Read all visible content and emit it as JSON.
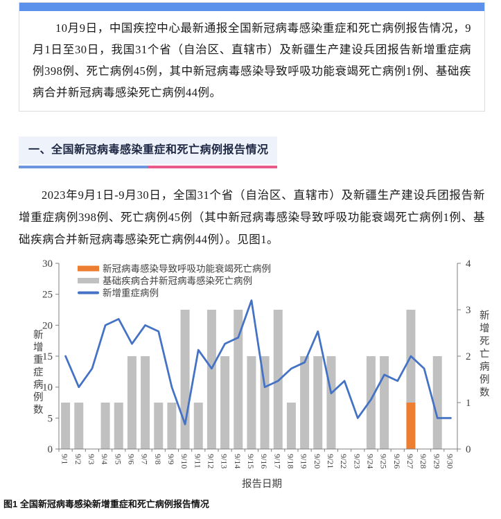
{
  "theme": {
    "top_bar_blue": "#5b91ea",
    "header_bg": "#edf2fb",
    "header_text": "#1d2742",
    "underline_blue": "#6e96e0",
    "underline_pink": "#e85c8d",
    "box_border": "#dcdcdc",
    "body_text": "#1a1a1a"
  },
  "intro_box": {
    "text": "10月9日，中国疾控中心最新通报全国新冠病毒感染重症和死亡病例报告情况，9月1日至30日，我国31个省（自治区、直辖市）及新疆生产建设兵团报告新增重症病例398例、死亡病例45例，其中新冠病毒感染导致呼吸功能衰竭死亡病例1例、基础疾病合并新冠病毒感染死亡病例44例。"
  },
  "section": {
    "title": "一、全国新冠病毒感染重症和死亡病例报告情况"
  },
  "paragraph": {
    "text": "2023年9月1日-9月30日，全国31个省（自治区、直辖市）及新疆生产建设兵团报告新增重症病例398例、死亡病例45例（其中新冠病毒感染导致呼吸功能衰竭死亡病例1例、基础疾病合并新冠病毒感染死亡病例44例）。见图1。"
  },
  "figure": {
    "caption": "图1 全国新冠病毒感染新增重症和死亡病例报告情况"
  },
  "chart_data": {
    "type": "combo-bar-line",
    "categories": [
      "9/1",
      "9/2",
      "9/3",
      "9/4",
      "9/5",
      "9/6",
      "9/7",
      "9/8",
      "9/9",
      "9/10",
      "9/11",
      "9/12",
      "9/13",
      "9/14",
      "9/15",
      "9/16",
      "9/17",
      "9/18",
      "9/19",
      "9/20",
      "9/21",
      "9/22",
      "9/23",
      "9/24",
      "9/25",
      "9/26",
      "9/27",
      "9/28",
      "9/29",
      "9/30"
    ],
    "series": [
      {
        "name": "新冠病毒感染导致呼吸功能衰竭死亡病例",
        "type": "bar",
        "stack": "deaths",
        "axis": "right",
        "color": "#ED7D31",
        "values": [
          0,
          0,
          0,
          0,
          0,
          0,
          0,
          0,
          0,
          0,
          0,
          0,
          0,
          0,
          0,
          0,
          0,
          0,
          0,
          0,
          0,
          0,
          0,
          0,
          0,
          0,
          1,
          0,
          0,
          0
        ]
      },
      {
        "name": "基础疾病合并新冠病毒感染死亡病例",
        "type": "bar",
        "stack": "deaths",
        "axis": "right",
        "color": "#C0C0C0",
        "values": [
          1,
          1,
          0,
          1,
          1,
          2,
          2,
          1,
          1,
          3,
          1,
          3,
          2,
          3,
          2,
          2,
          3,
          1,
          2,
          2,
          2,
          0,
          0,
          2,
          2,
          0,
          2,
          0,
          2,
          0
        ]
      },
      {
        "name": "新增重症病例",
        "type": "line",
        "axis": "left",
        "color": "#4472C4",
        "values": [
          15,
          10,
          13,
          20,
          21,
          17,
          20,
          19,
          10,
          4,
          16,
          13,
          17,
          18,
          24,
          10,
          11,
          13,
          14,
          19,
          9,
          11,
          5,
          8,
          12,
          11,
          15,
          13,
          5,
          5
        ]
      }
    ],
    "left_axis": {
      "label": "新增重症病例数",
      "min": 0,
      "max": 30,
      "ticks": [
        0,
        5,
        10,
        15,
        20,
        25,
        30
      ]
    },
    "right_axis": {
      "label": "新增死亡病例数",
      "min": 0,
      "max": 4,
      "ticks": [
        0,
        1,
        2,
        3,
        4
      ]
    },
    "xlabel": "报告日期",
    "grid": false,
    "legend_position": "top-left"
  }
}
